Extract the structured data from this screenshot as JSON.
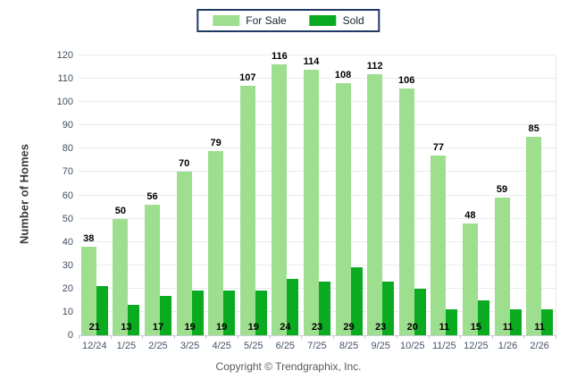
{
  "chart_data": {
    "type": "bar",
    "title": "",
    "categories": [
      "12/24",
      "1/25",
      "2/25",
      "3/25",
      "4/25",
      "5/25",
      "6/25",
      "7/25",
      "8/25",
      "9/25",
      "10/25",
      "11/25",
      "12/25",
      "1/26",
      "2/26"
    ],
    "series": [
      {
        "name": "For Sale",
        "color": "#9EDE8F",
        "values": [
          38,
          50,
          56,
          70,
          79,
          107,
          116,
          114,
          108,
          112,
          106,
          77,
          48,
          59,
          85
        ]
      },
      {
        "name": "Sold",
        "color": "#0AAB20",
        "values": [
          21,
          13,
          17,
          19,
          19,
          19,
          24,
          23,
          29,
          23,
          20,
          11,
          15,
          11,
          11
        ]
      }
    ],
    "xlabel": "",
    "ylabel": "Number of Homes",
    "ylim": [
      0,
      120
    ],
    "ytick_step": 10,
    "grid": "horizontal",
    "legend_position": "top-center",
    "value_labels": {
      "for_sale": "above bar",
      "sold": "inside bar bottom"
    }
  },
  "legend": {
    "border_color": "#1F3864"
  },
  "footer": {
    "copyright": "Copyright © Trendgraphix, Inc."
  }
}
